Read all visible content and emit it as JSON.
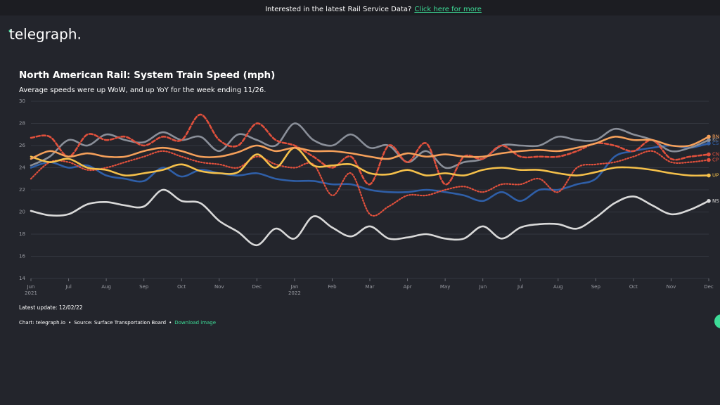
{
  "banner": {
    "text": "Interested in the latest Rail Service Data?",
    "link": "Click here for more"
  },
  "logo": "telegraph.",
  "chart_data": {
    "type": "line",
    "title": "North American Rail: System Train Speed (mph)",
    "subtitle": "Average speeds were up WoW, and up YoY for the week ending 11/26.",
    "x": [
      0,
      0.5,
      1,
      1.5,
      2,
      2.5,
      3,
      3.5,
      4,
      4.5,
      5,
      5.5,
      6,
      6.5,
      7,
      7.5,
      8,
      8.5,
      9,
      9.5,
      10,
      10.5,
      11,
      11.5,
      12,
      12.5,
      13,
      13.5,
      14,
      14.5,
      15,
      15.5,
      16,
      16.5,
      17,
      17.5,
      18
    ],
    "xlim": [
      0,
      18
    ],
    "xticks": [
      {
        "value": 0,
        "label": "Jun"
      },
      {
        "value": 1,
        "label": "Jul"
      },
      {
        "value": 2,
        "label": "Aug"
      },
      {
        "value": 3,
        "label": "Sep"
      },
      {
        "value": 4,
        "label": "Oct"
      },
      {
        "value": 5,
        "label": "Nov"
      },
      {
        "value": 6,
        "label": "Dec"
      },
      {
        "value": 7,
        "label": "Jan"
      },
      {
        "value": 8,
        "label": "Feb"
      },
      {
        "value": 9,
        "label": "Mar"
      },
      {
        "value": 10,
        "label": "Apr"
      },
      {
        "value": 11,
        "label": "May"
      },
      {
        "value": 12,
        "label": "Jun"
      },
      {
        "value": 13,
        "label": "Jul"
      },
      {
        "value": 14,
        "label": "Aug"
      },
      {
        "value": 15,
        "label": "Sep"
      },
      {
        "value": 16,
        "label": "Oct"
      },
      {
        "value": 17,
        "label": "Nov"
      },
      {
        "value": 18,
        "label": "Dec"
      }
    ],
    "year_labels": [
      {
        "value": 0,
        "label": "2021"
      },
      {
        "value": 7,
        "label": "2022"
      }
    ],
    "ylim": [
      14,
      30
    ],
    "yticks": [
      14,
      16,
      18,
      20,
      22,
      24,
      26,
      28,
      30
    ],
    "grid": true,
    "series": [
      {
        "name": "NS",
        "color": "#d9d9d9",
        "style": "solid",
        "values": [
          20.1,
          19.7,
          19.8,
          20.7,
          20.9,
          20.6,
          20.5,
          22.0,
          21.0,
          20.8,
          19.2,
          18.2,
          17.0,
          18.5,
          17.6,
          19.6,
          18.6,
          17.8,
          18.7,
          17.6,
          17.7,
          18.0,
          17.6,
          17.6,
          18.7,
          17.6,
          18.6,
          18.9,
          18.9,
          18.5,
          19.5,
          20.8,
          21.4,
          20.6,
          19.8,
          20.2,
          21.0
        ]
      },
      {
        "name": "CS",
        "color": "#2f5fa8",
        "style": "solid",
        "values": [
          24.0,
          24.5,
          24.0,
          24.2,
          23.3,
          23.0,
          22.8,
          24.0,
          23.2,
          23.8,
          23.5,
          23.3,
          23.5,
          23.0,
          22.8,
          22.8,
          22.5,
          22.5,
          22.0,
          21.8,
          21.8,
          22.0,
          21.8,
          21.5,
          21.0,
          21.8,
          21.0,
          22.0,
          22.0,
          22.5,
          23.0,
          25.0,
          25.5,
          25.8,
          26.0,
          25.8,
          26.2
        ]
      },
      {
        "name": "KC",
        "color": "#8a8f99",
        "style": "solid",
        "values": [
          24.2,
          25.0,
          26.5,
          26.0,
          27.0,
          26.5,
          26.3,
          27.2,
          26.5,
          26.8,
          25.5,
          27.0,
          26.5,
          26.0,
          28.0,
          26.5,
          26.0,
          27.0,
          25.8,
          26.0,
          24.5,
          25.5,
          24.0,
          24.5,
          24.8,
          26.0,
          26.0,
          26.0,
          26.8,
          26.5,
          26.5,
          27.5,
          27.0,
          26.5,
          25.5,
          25.8,
          26.5
        ]
      },
      {
        "name": "CP",
        "color": "#e0503c",
        "style": "dotted",
        "values": [
          23.0,
          24.5,
          24.5,
          23.8,
          24.0,
          24.5,
          25.0,
          25.5,
          25.0,
          24.5,
          24.3,
          24.0,
          25.0,
          24.3,
          24.0,
          24.3,
          21.5,
          23.5,
          19.8,
          20.5,
          21.5,
          21.5,
          22.0,
          22.3,
          21.8,
          22.5,
          22.5,
          23.0,
          21.8,
          24.0,
          24.3,
          24.5,
          25.0,
          25.5,
          24.5,
          24.5,
          24.7
        ]
      },
      {
        "name": "CN",
        "color": "#e0503c",
        "style": "dashed",
        "values": [
          26.7,
          26.8,
          25.0,
          27.0,
          26.5,
          26.8,
          26.0,
          26.8,
          26.5,
          28.8,
          26.5,
          26.0,
          28.0,
          26.5,
          26.0,
          25.0,
          24.0,
          25.0,
          22.5,
          26.0,
          24.5,
          26.2,
          22.5,
          25.0,
          24.8,
          26.0,
          25.0,
          25.0,
          25.0,
          25.5,
          26.2,
          26.0,
          25.5,
          26.5,
          24.8,
          25.0,
          25.2
        ]
      },
      {
        "name": "UP",
        "color": "#f5c04a",
        "style": "solid",
        "values": [
          25.0,
          24.5,
          24.8,
          24.0,
          23.8,
          23.3,
          23.5,
          23.8,
          24.3,
          23.7,
          23.5,
          23.6,
          25.2,
          24.0,
          25.8,
          24.2,
          24.2,
          24.3,
          23.5,
          23.4,
          23.8,
          23.3,
          23.5,
          23.3,
          23.8,
          24.0,
          23.8,
          23.8,
          23.5,
          23.3,
          23.6,
          24.0,
          24.0,
          23.8,
          23.5,
          23.3,
          23.3
        ]
      },
      {
        "name": "BN",
        "color": "#f5a05a",
        "style": "solid",
        "values": [
          24.8,
          25.5,
          25.0,
          25.3,
          25.0,
          25.0,
          25.5,
          25.8,
          25.5,
          25.0,
          25.0,
          25.4,
          26.0,
          25.5,
          25.8,
          25.5,
          25.5,
          25.3,
          25.0,
          24.8,
          25.3,
          25.0,
          25.2,
          25.0,
          25.0,
          25.3,
          25.5,
          25.6,
          25.5,
          25.8,
          26.2,
          26.8,
          26.5,
          26.5,
          26.0,
          26.0,
          26.8
        ]
      }
    ]
  },
  "footer": {
    "update": "Latest update: 12/02/22",
    "credit": "Chart: telegraph.io",
    "source": "Source: Surface Transportation Board",
    "download": "Download image"
  }
}
